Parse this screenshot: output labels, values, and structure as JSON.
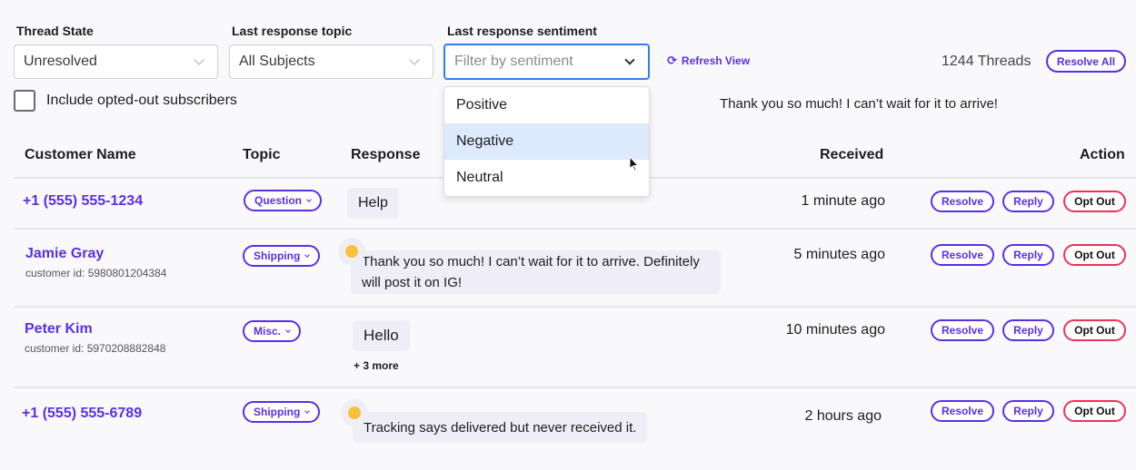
{
  "filters": {
    "thread_state": {
      "label": "Thread State",
      "value": "Unresolved"
    },
    "topic": {
      "label": "Last response topic",
      "value": "All Subjects"
    },
    "sentiment": {
      "label": "Last response sentiment",
      "placeholder": "Filter by sentiment",
      "options": [
        "Positive",
        "Negative",
        "Neutral"
      ],
      "highlighted": "Negative"
    },
    "refresh_label": "Refresh View",
    "opted_out_label": "Include opted-out subscribers"
  },
  "summary": {
    "thread_count": "1244 Threads",
    "resolve_all": "Resolve All"
  },
  "tooltip": "Thank you so much! I can’t wait for it to arrive!",
  "table": {
    "headers": [
      "Customer Name",
      "Topic",
      "Response",
      "Received",
      "Action"
    ],
    "actions": {
      "resolve": "Resolve",
      "reply": "Reply",
      "opt_out": "Opt Out"
    },
    "rows": [
      {
        "name": "+1 (555) 555-1234",
        "customer_id": "",
        "topic": "Question",
        "response": "Help",
        "received": "1 minute ago"
      },
      {
        "name": "Jamie Gray",
        "customer_id": "customer id: 5980801204384",
        "topic": "Shipping",
        "response": "Thank you so much! I can’t wait for it to arrive. Definitely will post it on IG!",
        "emoji": "grinning-face",
        "received": "5 minutes ago"
      },
      {
        "name": "Peter Kim",
        "customer_id": "customer id: 5970208882848",
        "topic": "Misc.",
        "response": "Hello",
        "more": "+ 3 more",
        "received": "10 minutes ago"
      },
      {
        "name": "+1 (555) 555-6789",
        "customer_id": "",
        "topic": "Shipping",
        "response": "Tracking says delivered but never received it.",
        "emoji": "disappointed-face",
        "received": "2 hours ago"
      }
    ]
  },
  "colors": {
    "accent": "#5a2ee8",
    "danger": "#f0305a",
    "focus": "#2f7df6",
    "highlight": "#dde9fc"
  }
}
